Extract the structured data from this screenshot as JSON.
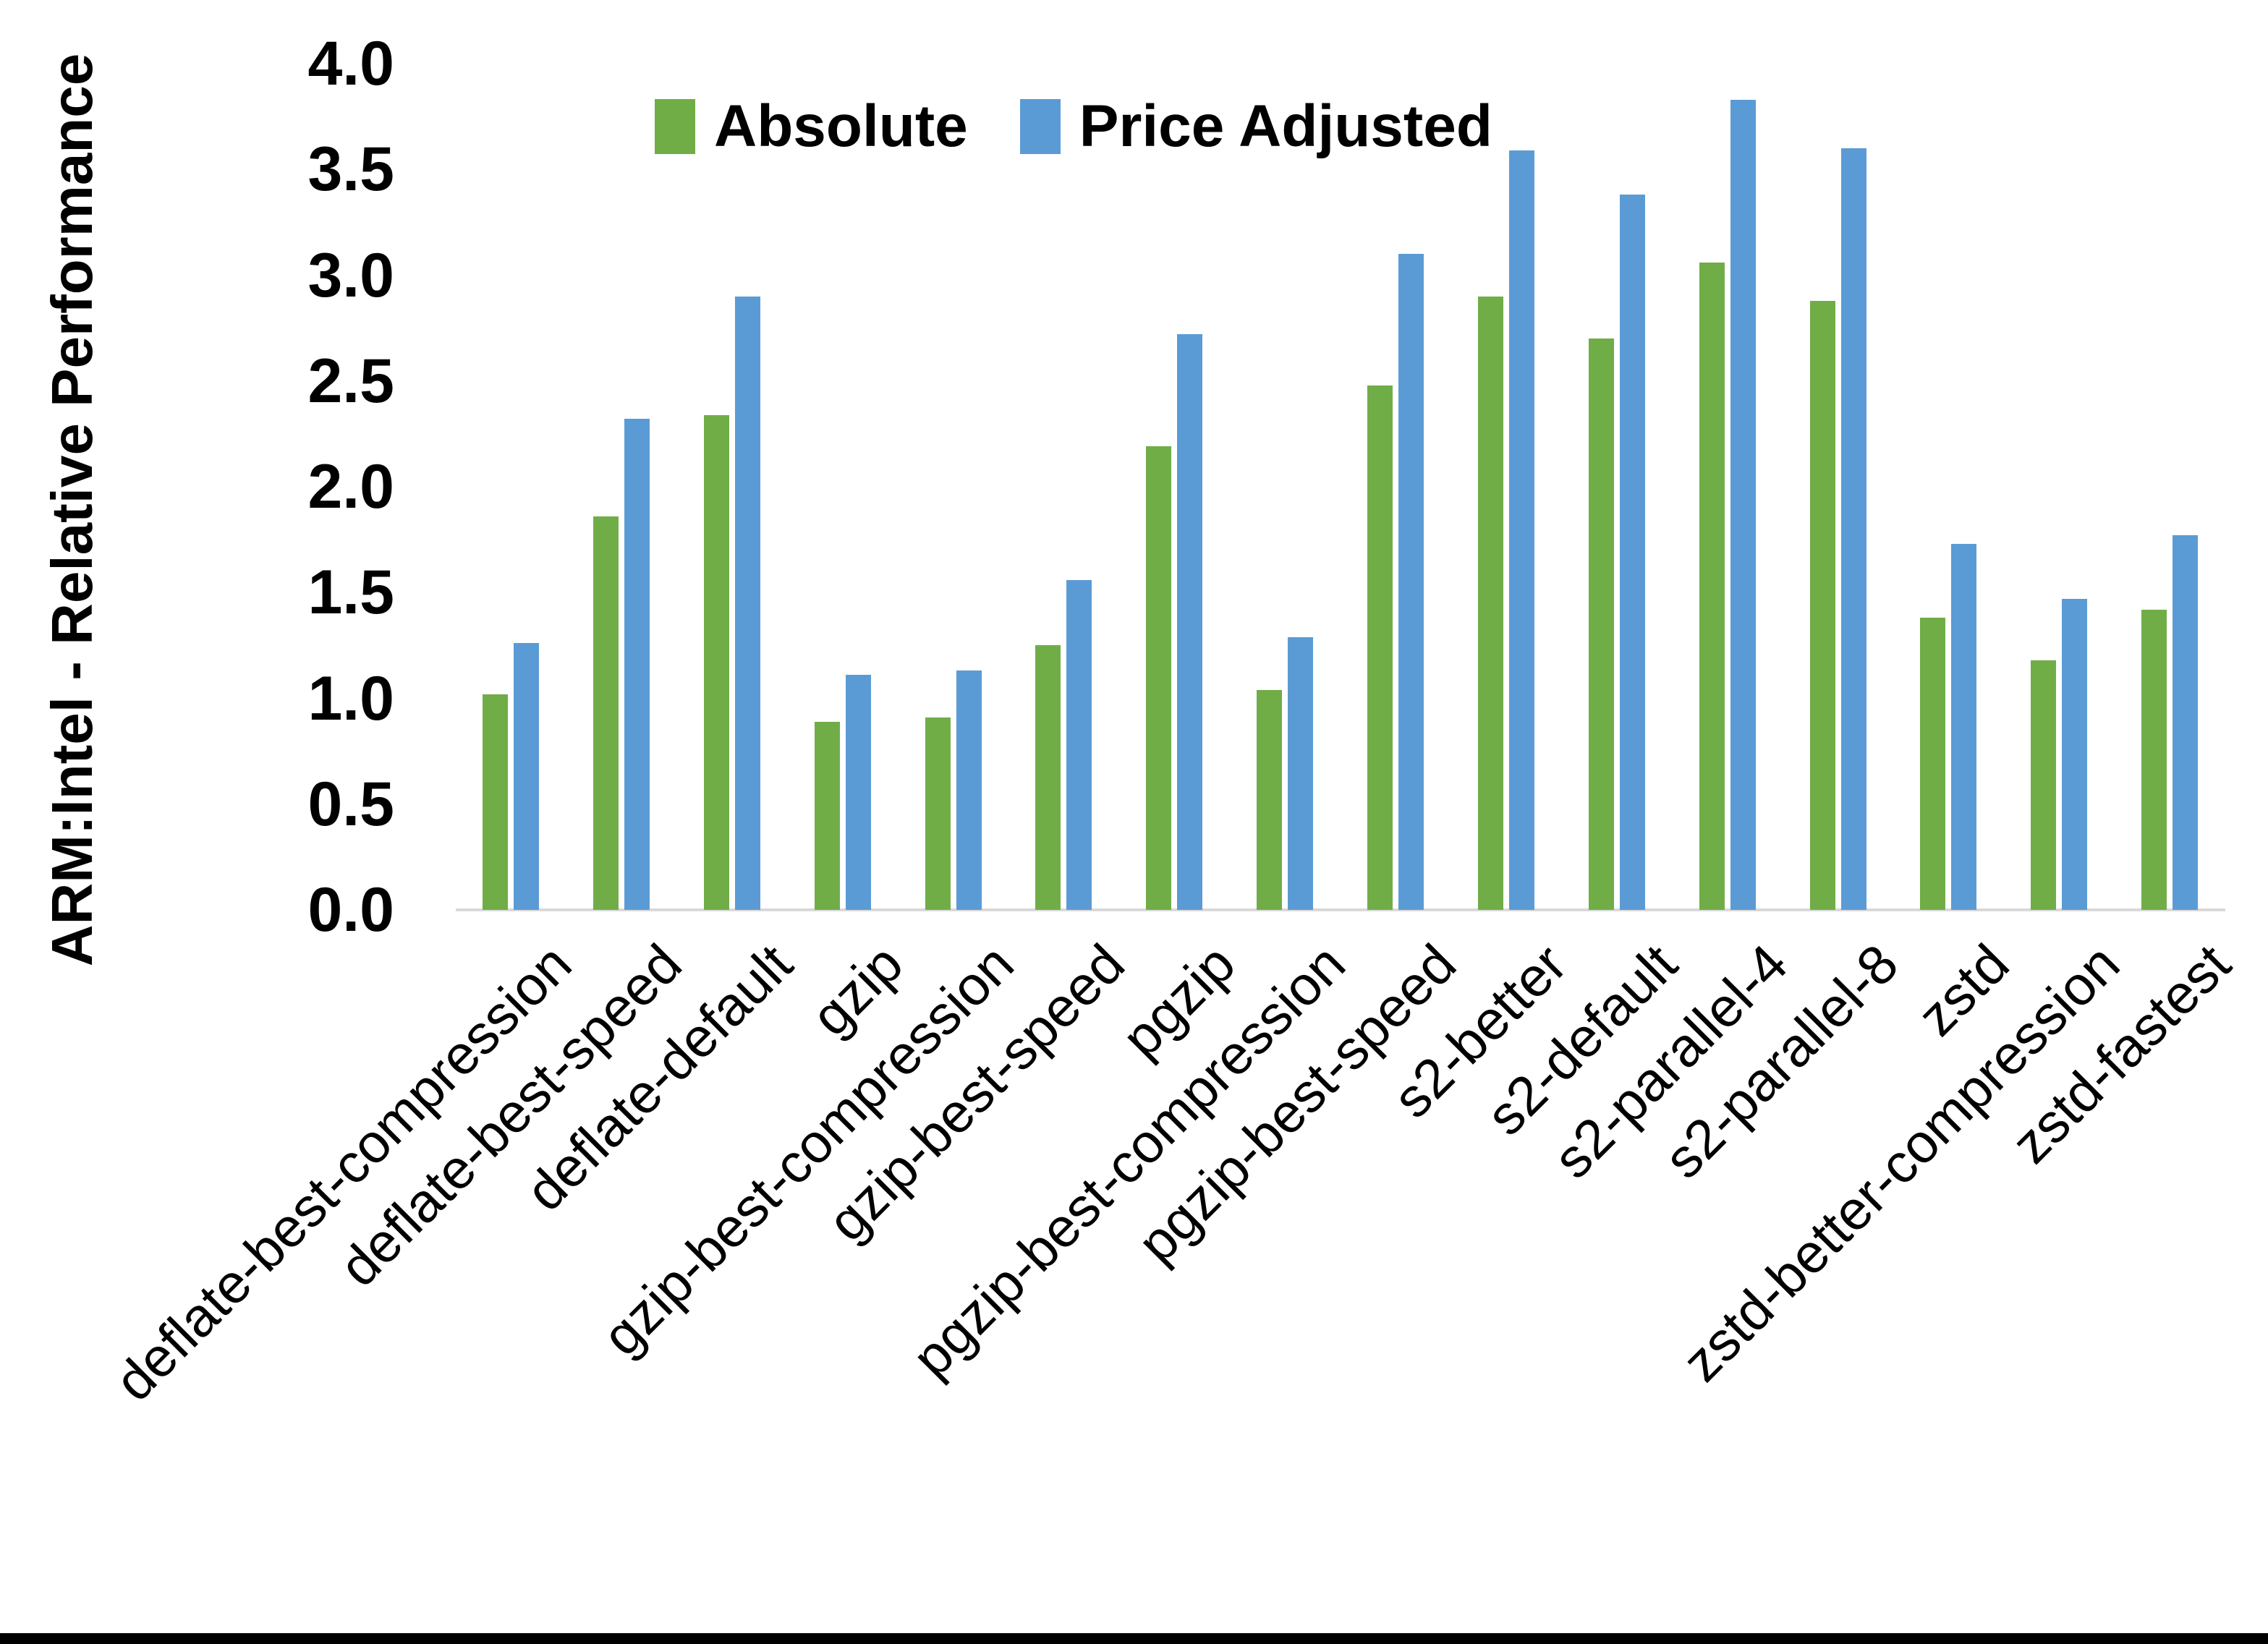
{
  "colors": {
    "absolute_green": "#70AD47",
    "price_adjusted_blue": "#5B9BD5",
    "axis_line_gray": "#D9D9D9",
    "text_black": "#000000"
  },
  "chart_data": {
    "type": "bar",
    "title": "",
    "xlabel": "",
    "ylabel": "ARM:Intel - Relative Performance",
    "ylim": [
      0,
      4
    ],
    "ytick_step": 0.5,
    "yticks": [
      "0.0",
      "0.5",
      "1.0",
      "1.5",
      "2.0",
      "2.5",
      "3.0",
      "3.5",
      "4.0"
    ],
    "grid": false,
    "legend_position": "top-center",
    "categories": [
      "deflate-best-compression",
      "deflate-best-speed",
      "deflate-default",
      "gzip",
      "gzip-best-compression",
      "gzip-best-speed",
      "pgzip",
      "pgzip-best-compression",
      "pgzip-best-speed",
      "s2-better",
      "s2-default",
      "s2-parallel-4",
      "s2-parallel-8",
      "zstd",
      "zstd-better-compression",
      "zstd-fastest"
    ],
    "series": [
      {
        "name": "Absolute",
        "color": "#70AD47",
        "values": [
          1.02,
          1.86,
          2.34,
          0.89,
          0.91,
          1.25,
          2.19,
          1.04,
          2.48,
          2.9,
          2.7,
          3.06,
          2.88,
          1.38,
          1.18,
          1.42
        ]
      },
      {
        "name": "Price Adjusted",
        "color": "#5B9BD5",
        "values": [
          1.26,
          2.32,
          2.9,
          1.11,
          1.13,
          1.56,
          2.72,
          1.29,
          3.1,
          3.59,
          3.38,
          3.83,
          3.6,
          1.73,
          1.47,
          1.77
        ]
      }
    ]
  }
}
